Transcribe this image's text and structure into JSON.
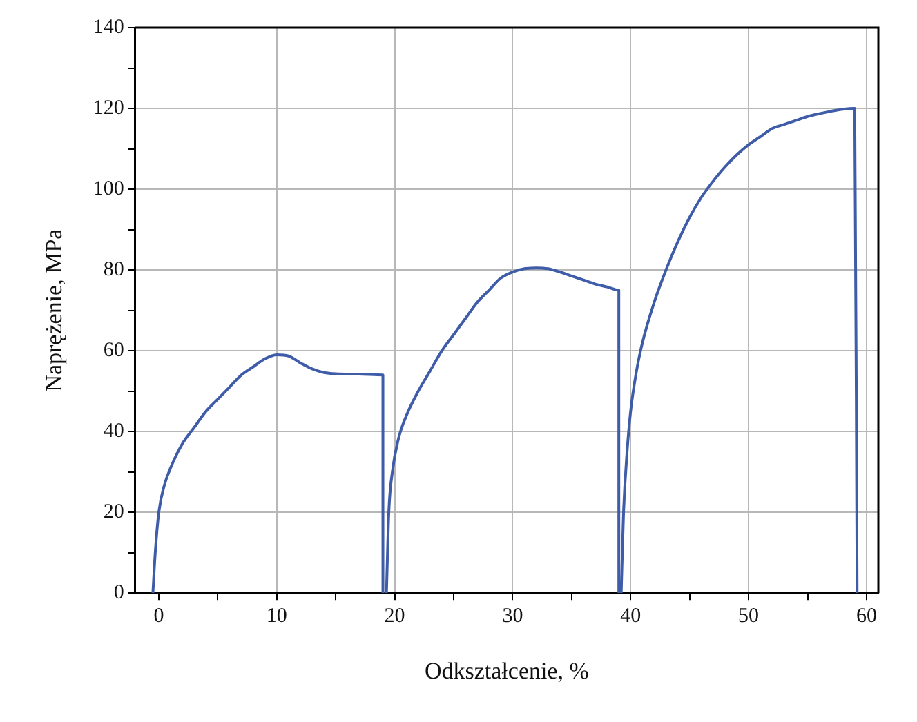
{
  "chart_data": {
    "type": "line",
    "xlabel": "Odkształcenie, %",
    "ylabel": "Naprężenie, MPa",
    "xlim": [
      -2,
      61
    ],
    "ylim": [
      0,
      140
    ],
    "xticks": [
      0,
      {
        "value": 5,
        "label": null
      },
      10,
      {
        "value": 15,
        "label": null
      },
      20,
      {
        "value": 25,
        "label": null
      },
      30,
      {
        "value": 35,
        "label": null
      },
      40,
      {
        "value": 45,
        "label": null
      },
      50,
      {
        "value": 55,
        "label": null
      },
      60
    ],
    "yticks": [
      0,
      {
        "value": 10,
        "label": null
      },
      20,
      {
        "value": 30,
        "label": null
      },
      40,
      {
        "value": 50,
        "label": null
      },
      60,
      {
        "value": 70,
        "label": null
      },
      80,
      {
        "value": 90,
        "label": null
      },
      100,
      {
        "value": 110,
        "label": null
      },
      120,
      {
        "value": 130,
        "label": null
      },
      140
    ],
    "grid": true,
    "marker": "none",
    "line_style": "solid",
    "series": [
      {
        "color": "#3f5ca8",
        "x": [
          -0.5,
          -0.3,
          0,
          0.5,
          1,
          2,
          3,
          4,
          5,
          6,
          7,
          8,
          9,
          10,
          11,
          12,
          13,
          14,
          15,
          17,
          19,
          19
        ],
        "values": [
          0,
          10,
          20,
          27,
          31,
          37,
          41,
          45,
          48,
          51,
          54,
          56,
          58,
          59,
          58.7,
          57,
          55.5,
          54.6,
          54.3,
          54.2,
          54,
          0
        ]
      },
      {
        "color": "#3f5ca8",
        "x": [
          19.3,
          19.5,
          19.8,
          20.3,
          21,
          22,
          23,
          24,
          25,
          26,
          27,
          28,
          29,
          30,
          31,
          32,
          33,
          34,
          35,
          36,
          37,
          38,
          39,
          39
        ],
        "values": [
          0,
          20,
          30,
          38,
          44,
          50,
          55,
          60,
          64,
          68,
          72,
          75,
          78,
          79.5,
          80.3,
          80.5,
          80.3,
          79.5,
          78.5,
          77.5,
          76.5,
          75.8,
          75,
          0
        ]
      },
      {
        "color": "#3f5ca8",
        "x": [
          39.2,
          39.4,
          39.7,
          40,
          40.5,
          41,
          42,
          43,
          44,
          45,
          46,
          47,
          48,
          49,
          50,
          51,
          52,
          53,
          54,
          55,
          56,
          57,
          58,
          59,
          59.2
        ],
        "values": [
          0,
          20,
          35,
          45,
          55,
          62,
          72,
          80,
          87,
          93,
          98,
          102,
          105.5,
          108.5,
          111,
          113,
          115,
          116,
          117,
          118,
          118.7,
          119.3,
          119.8,
          120,
          0
        ]
      }
    ]
  }
}
